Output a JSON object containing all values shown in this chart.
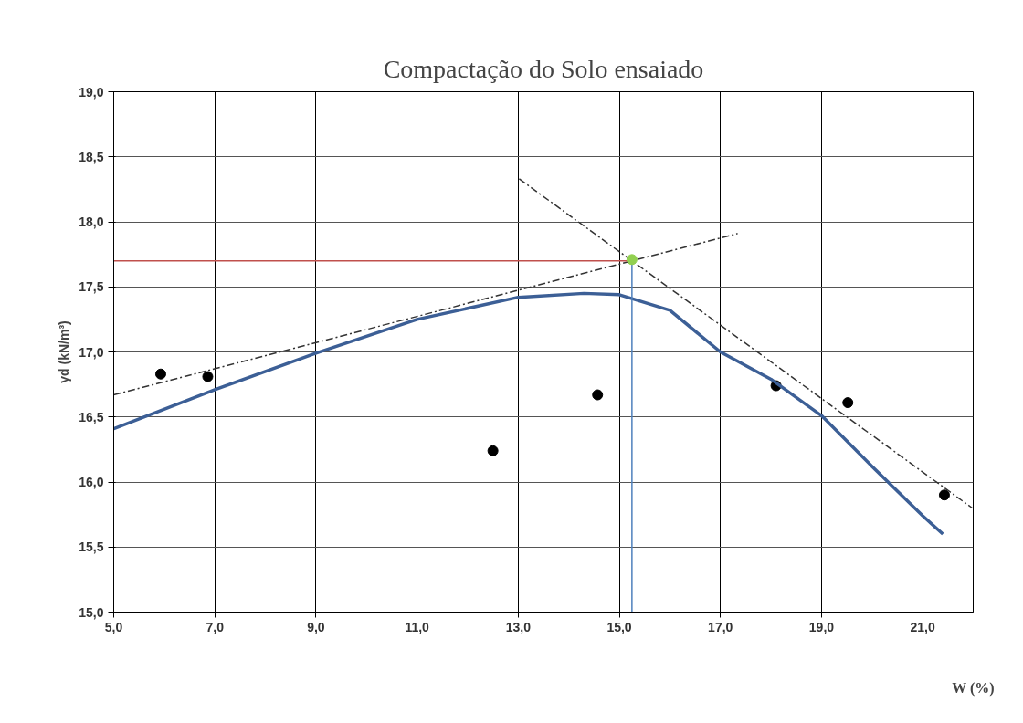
{
  "chart_data": {
    "type": "scatter",
    "title": "Compactação do Solo ensaiado",
    "xlabel": "W (%)",
    "ylabel": "γd (kN/m³)",
    "xlim": [
      5,
      22
    ],
    "ylim": [
      15,
      19
    ],
    "xticks": [
      {
        "value": 5,
        "label": "5,0"
      },
      {
        "value": 7,
        "label": "7,0"
      },
      {
        "value": 9,
        "label": "9,0"
      },
      {
        "value": 11,
        "label": "11,0"
      },
      {
        "value": 13,
        "label": "13,0"
      },
      {
        "value": 15,
        "label": "15,0"
      },
      {
        "value": 17,
        "label": "17,0"
      },
      {
        "value": 19,
        "label": "19,0"
      },
      {
        "value": 21,
        "label": "21,0"
      }
    ],
    "yticks": [
      {
        "value": 15,
        "label": "15,0"
      },
      {
        "value": 15.5,
        "label": "15,5"
      },
      {
        "value": 16,
        "label": "16,0"
      },
      {
        "value": 16.5,
        "label": "16,5"
      },
      {
        "value": 17,
        "label": "17,0"
      },
      {
        "value": 17.5,
        "label": "17,5"
      },
      {
        "value": 18,
        "label": "18,0"
      },
      {
        "value": 18.5,
        "label": "18,5"
      },
      {
        "value": 19,
        "label": "19,0"
      }
    ],
    "grid": true,
    "series": [
      {
        "marker": "circle",
        "color": "#000000",
        "x": [
          5.93,
          6.86,
          12.5,
          14.57,
          18.1,
          19.52,
          21.43
        ],
        "values": [
          16.83,
          16.81,
          16.24,
          16.67,
          16.74,
          16.61,
          15.9
        ]
      },
      {
        "type": "line",
        "line_style": "solid",
        "color": "#3c5f96",
        "x": [
          5,
          7,
          9,
          11,
          13,
          14.3,
          15,
          16,
          17,
          18,
          19,
          20,
          21,
          21.4
        ],
        "values": [
          16.41,
          16.71,
          16.99,
          17.25,
          17.42,
          17.45,
          17.44,
          17.32,
          17.0,
          16.79,
          16.51,
          16.12,
          15.74,
          15.6
        ]
      },
      {
        "type": "line",
        "line_style": "dashed",
        "color": "#333333",
        "x": [
          5,
          17.34
        ],
        "values": [
          16.67,
          17.91
        ]
      },
      {
        "type": "line",
        "line_style": "dashed",
        "color": "#333333",
        "x": [
          13.02,
          21.98
        ],
        "values": [
          18.33,
          15.8
        ]
      },
      {
        "type": "line",
        "line_style": "solid",
        "color": "#c0504d",
        "x": [
          15.25,
          5.0
        ],
        "values": [
          17.7,
          17.7
        ]
      },
      {
        "type": "line",
        "line_style": "solid",
        "color": "#4f81bd",
        "x": [
          15.25,
          15.25
        ],
        "values": [
          17.7,
          15.0
        ]
      },
      {
        "type": "scatter",
        "marker": "circle",
        "color": "#92d050",
        "x": [
          15.25
        ],
        "values": [
          17.71
        ]
      }
    ]
  }
}
